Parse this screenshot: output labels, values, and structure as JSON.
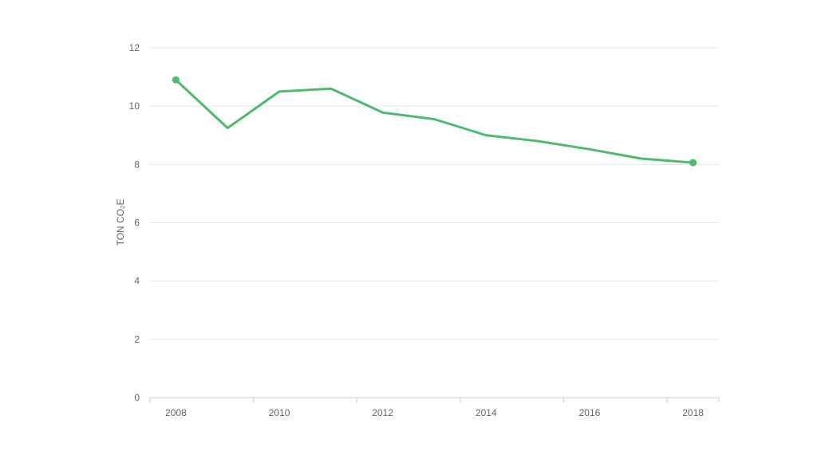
{
  "chart_data": {
    "type": "line",
    "title": "",
    "xlabel": "",
    "ylabel": "TON CO₂E",
    "x": [
      2008,
      2009,
      2010,
      2011,
      2012,
      2013,
      2014,
      2015,
      2016,
      2017,
      2018
    ],
    "x_ticks": [
      "2008",
      "2010",
      "2012",
      "2014",
      "2016",
      "2018"
    ],
    "xlim": [
      2007.5,
      2018.5
    ],
    "ylim": [
      0,
      12
    ],
    "y_ticks": [
      "0",
      "2",
      "4",
      "6",
      "8",
      "10",
      "12"
    ],
    "grid": true,
    "legend": "none",
    "series": [
      {
        "name": "",
        "color": "#4dbb6f",
        "values": [
          10.9,
          9.25,
          10.5,
          10.6,
          9.78,
          9.55,
          9.0,
          8.8,
          8.52,
          8.2,
          8.06
        ],
        "endpoint_markers": true
      }
    ]
  },
  "colors": {
    "line": "#4dbb6f",
    "grid": "#e6e6e6",
    "axis": "#cccccc",
    "text": "#666666"
  }
}
